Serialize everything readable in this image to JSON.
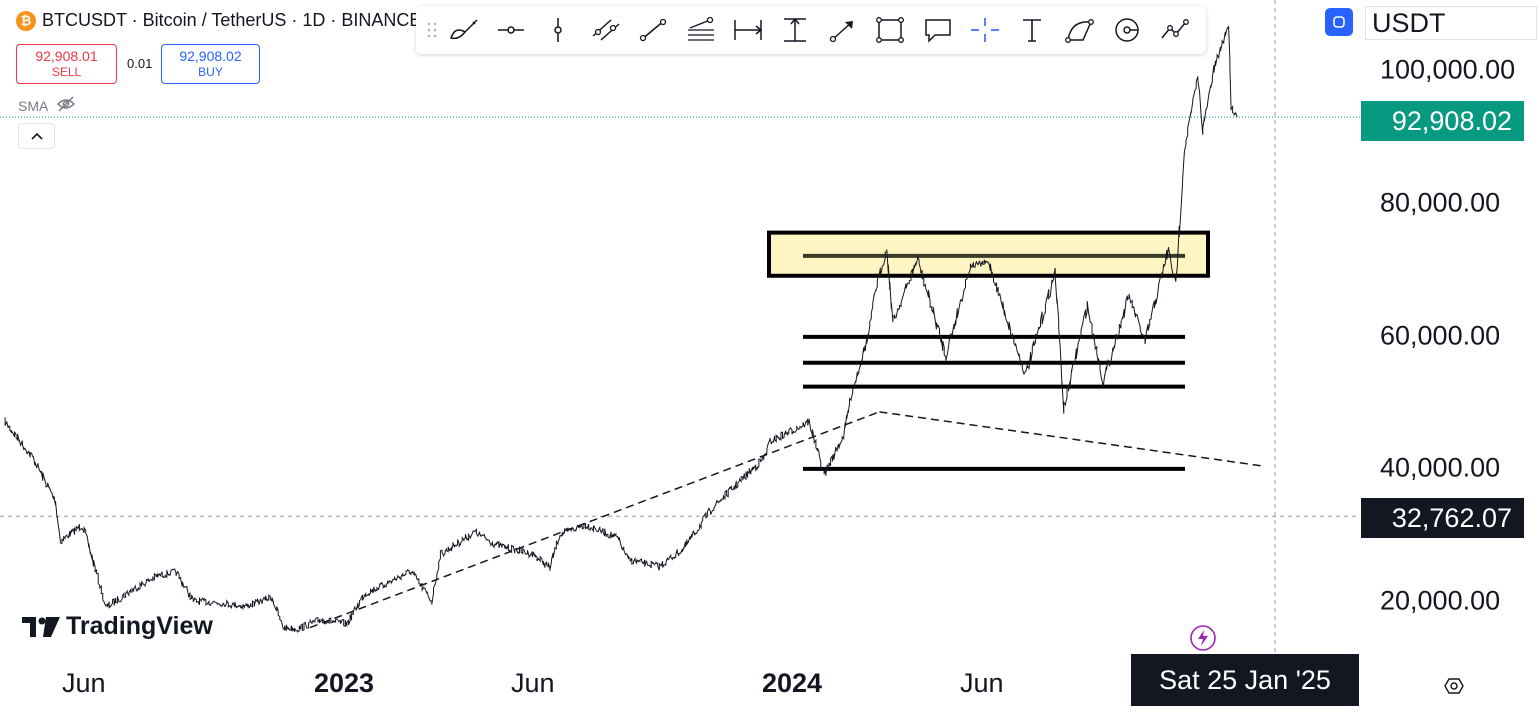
{
  "symbol": {
    "title": "BTCUSDT · Bitcoin / TetherUS · 1D · BINANCE",
    "icon": "bitcoin-icon"
  },
  "trade": {
    "sell_price": "92,908.01",
    "sell_label": "SELL",
    "spread": "0.01",
    "buy_price": "92,908.02",
    "buy_label": "BUY"
  },
  "indicator": {
    "label": "SMA",
    "icon": "eye-hidden-icon"
  },
  "toolbar": {
    "tools": [
      "brush-tool-icon",
      "horizontal-ray-icon",
      "vertical-line-icon",
      "parallel-channel-icon",
      "trend-line-icon",
      "fib-retracement-icon",
      "date-range-icon",
      "price-range-icon",
      "arrow-icon",
      "rectangle-icon",
      "callout-icon",
      "crosshair-icon",
      "text-icon",
      "curve-icon",
      "circle-icon",
      "forecast-icon"
    ]
  },
  "currency": {
    "value": "USDT"
  },
  "price_axis": {
    "labels": [
      "100,000.00",
      "80,000.00",
      "60,000.00",
      "40,000.00",
      "20,000.00"
    ],
    "last_price": "92,908.02",
    "crosshair_price": "32,762.07"
  },
  "time_axis": {
    "labels": [
      {
        "text": "Jun",
        "bold": false
      },
      {
        "text": "2023",
        "bold": true
      },
      {
        "text": "Jun",
        "bold": false
      },
      {
        "text": "2024",
        "bold": true
      },
      {
        "text": "Jun",
        "bold": false
      }
    ],
    "crosshair_date": "Sat 25 Jan '25"
  },
  "branding": {
    "logo_text": "TradingView"
  },
  "colors": {
    "up": "#089981",
    "accent": "#2962ff",
    "sell": "#f23645",
    "highlight": "#fff5c2"
  },
  "chart_data": {
    "type": "line",
    "series": [
      {
        "values": [
          [
            "2022-03-28",
            47000
          ],
          [
            "2022-04-20",
            41500
          ],
          [
            "2022-05-08",
            35000
          ],
          [
            "2022-05-12",
            29000
          ],
          [
            "2022-05-30",
            31500
          ],
          [
            "2022-06-13",
            22500
          ],
          [
            "2022-06-18",
            19000
          ],
          [
            "2022-07-08",
            21500
          ],
          [
            "2022-07-30",
            23800
          ],
          [
            "2022-08-14",
            24400
          ],
          [
            "2022-08-28",
            20000
          ],
          [
            "2022-09-15",
            19800
          ],
          [
            "2022-10-10",
            19200
          ],
          [
            "2022-10-31",
            20600
          ],
          [
            "2022-11-09",
            16000
          ],
          [
            "2022-11-21",
            15800
          ],
          [
            "2022-12-10",
            17200
          ],
          [
            "2022-12-31",
            16550
          ],
          [
            "2023-01-14",
            21000
          ],
          [
            "2023-02-05",
            23000
          ],
          [
            "2023-02-21",
            24500
          ],
          [
            "2023-03-10",
            20000
          ],
          [
            "2023-03-17",
            27000
          ],
          [
            "2023-04-14",
            30400
          ],
          [
            "2023-05-01",
            28500
          ],
          [
            "2023-06-01",
            27000
          ],
          [
            "2023-06-14",
            25000
          ],
          [
            "2023-06-22",
            30000
          ],
          [
            "2023-07-13",
            31500
          ],
          [
            "2023-08-08",
            29500
          ],
          [
            "2023-08-17",
            26200
          ],
          [
            "2023-09-11",
            25200
          ],
          [
            "2023-10-01",
            27900
          ],
          [
            "2023-10-24",
            34000
          ],
          [
            "2023-11-10",
            37000
          ],
          [
            "2023-12-05",
            41500
          ],
          [
            "2023-12-10",
            44000
          ],
          [
            "2024-01-11",
            47000
          ],
          [
            "2024-01-23",
            39000
          ],
          [
            "2024-02-08",
            45000
          ],
          [
            "2024-02-14",
            51000
          ],
          [
            "2024-02-28",
            60000
          ],
          [
            "2024-03-05",
            67000
          ],
          [
            "2024-03-14",
            73000
          ],
          [
            "2024-03-19",
            62000
          ],
          [
            "2024-04-08",
            71500
          ],
          [
            "2024-05-01",
            57000
          ],
          [
            "2024-05-21",
            70500
          ],
          [
            "2024-06-05",
            71000
          ],
          [
            "2024-06-24",
            60000
          ],
          [
            "2024-07-05",
            54000
          ],
          [
            "2024-07-29",
            69500
          ],
          [
            "2024-08-05",
            49000
          ],
          [
            "2024-08-24",
            64500
          ],
          [
            "2024-09-06",
            53000
          ],
          [
            "2024-09-27",
            66000
          ],
          [
            "2024-10-10",
            59000
          ],
          [
            "2024-10-29",
            73000
          ],
          [
            "2024-11-04",
            67500
          ],
          [
            "2024-11-11",
            88000
          ],
          [
            "2024-11-22",
            99000
          ],
          [
            "2024-11-26",
            91000
          ],
          [
            "2024-12-05",
            100000
          ],
          [
            "2024-12-17",
            107000
          ],
          [
            "2024-12-19",
            94500
          ],
          [
            "2024-12-24",
            92908
          ]
        ]
      }
    ],
    "xlabel": "",
    "ylabel": "",
    "ylim": [
      13000,
      108000
    ],
    "x_ticks": [
      "Jun",
      "2023",
      "Jun",
      "2024",
      "Jun"
    ],
    "y_ticks": [
      100000,
      80000,
      60000,
      40000,
      20000
    ],
    "last_price": 92908.02,
    "crosshair": {
      "price": 32762.07,
      "date": "Sat 25 Jan '25"
    },
    "drawings": {
      "support_lines": [
        72000,
        59800,
        55900,
        52300,
        39900
      ],
      "highlight_zone": [
        69000,
        75500
      ],
      "dashed_trendlines": [
        [
          [
            "2022-12-01",
            16000
          ],
          [
            "2024-03-08",
            48500
          ]
        ],
        [
          "2024-03-08",
          48500
        ],
        [
          [
            "2024-03-08",
            48500
          ],
          [
            "2025-01-15",
            40300
          ]
        ]
      ]
    },
    "grid": false,
    "legend": "none"
  }
}
